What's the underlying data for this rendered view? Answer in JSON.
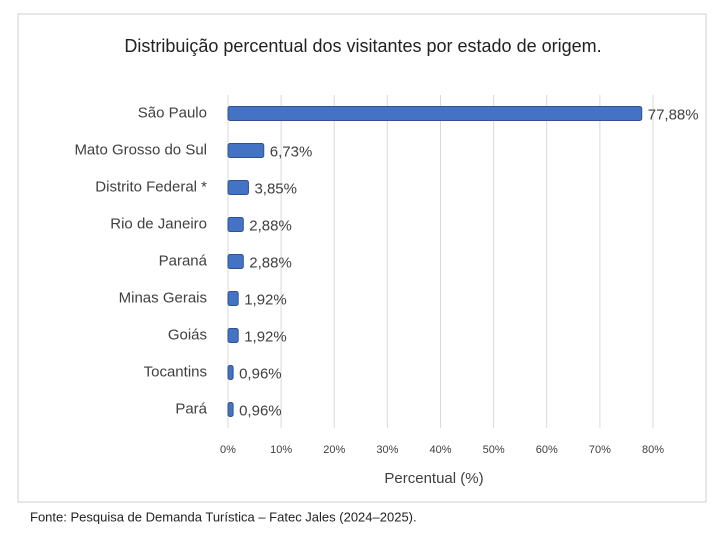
{
  "chart_data": {
    "type": "bar",
    "orientation": "horizontal",
    "title": "Distribuição percentual dos visitantes por estado de origem.",
    "categories": [
      "São Paulo",
      "Mato Grosso do Sul",
      "Distrito Federal *",
      "Rio de Janeiro",
      "Paraná",
      "Minas Gerais",
      "Goiás",
      "Tocantins",
      "Pará"
    ],
    "values": [
      77.88,
      6.73,
      3.85,
      2.88,
      2.88,
      1.92,
      1.92,
      0.96,
      0.96
    ],
    "value_labels": [
      "77,88%",
      "6,73%",
      "3,85%",
      "2,88%",
      "2,88%",
      "1,92%",
      "1,92%",
      "0,96%",
      "0,96%"
    ],
    "color": "#4472c4",
    "xlabel": "Percentual (%)",
    "xlim": [
      0,
      80
    ],
    "xticks": [
      {
        "value": 0,
        "label": "0%"
      },
      {
        "value": 10,
        "label": "10%"
      },
      {
        "value": 20,
        "label": "20%"
      },
      {
        "value": 30,
        "label": "30%"
      },
      {
        "value": 40,
        "label": "40%"
      },
      {
        "value": 50,
        "label": "50%"
      },
      {
        "value": 60,
        "label": "60%"
      },
      {
        "value": 70,
        "label": "70%"
      },
      {
        "value": 80,
        "label": "80%"
      }
    ],
    "grid": true,
    "source": "Fonte: Pesquisa de Demanda Turística – Fatec Jales (2024–2025)."
  }
}
